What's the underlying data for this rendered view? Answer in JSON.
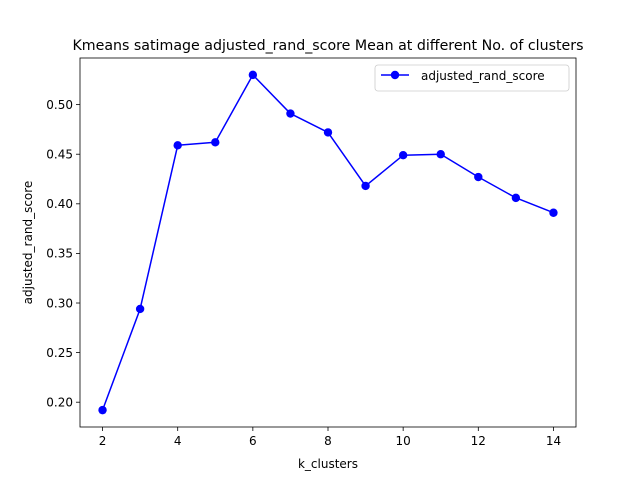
{
  "chart_data": {
    "type": "line",
    "title": "Kmeans satimage adjusted_rand_score Mean at different No. of clusters",
    "xlabel": "k_clusters",
    "ylabel": "adjusted_rand_score",
    "x": [
      2,
      3,
      4,
      5,
      6,
      7,
      8,
      9,
      10,
      11,
      12,
      13,
      14
    ],
    "series": [
      {
        "name": "adjusted_rand_score",
        "color": "#0000ff",
        "marker": "circle",
        "values": [
          0.192,
          0.294,
          0.459,
          0.462,
          0.53,
          0.491,
          0.472,
          0.418,
          0.449,
          0.45,
          0.427,
          0.406,
          0.391
        ]
      }
    ],
    "xlim": [
      1.4,
      14.6
    ],
    "ylim": [
      0.175,
      0.547
    ],
    "x_ticks": [
      2,
      4,
      6,
      8,
      10,
      12,
      14
    ],
    "x_tick_labels": [
      "2",
      "4",
      "6",
      "8",
      "10",
      "12",
      "14"
    ],
    "y_ticks": [
      0.2,
      0.25,
      0.3,
      0.35,
      0.4,
      0.45,
      0.5
    ],
    "y_tick_labels": [
      "0.20",
      "0.25",
      "0.30",
      "0.35",
      "0.40",
      "0.45",
      "0.50"
    ],
    "grid": false,
    "legend_position": "top-right"
  }
}
